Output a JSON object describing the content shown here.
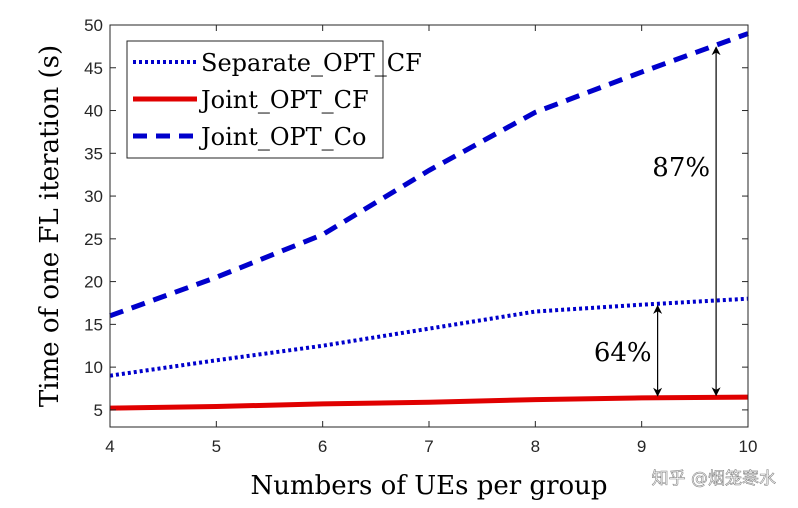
{
  "chart_data": {
    "type": "line",
    "xlabel": "Numbers of UEs per group",
    "ylabel": "Time of one FL iteration (s)",
    "xlim": [
      4,
      10
    ],
    "ylim": [
      3,
      50
    ],
    "xticks": [
      4,
      5,
      6,
      7,
      8,
      9,
      10
    ],
    "yticks": [
      5,
      10,
      15,
      20,
      25,
      30,
      35,
      40,
      45,
      50
    ],
    "grid": false,
    "legend_position": "top-left",
    "x": [
      4,
      5,
      6,
      7,
      8,
      9,
      10
    ],
    "series": [
      {
        "name": "Separate_OPT_CF",
        "color": "#0000cc",
        "style": "dotted",
        "values": [
          9.0,
          10.8,
          12.5,
          14.5,
          16.5,
          17.3,
          18.0
        ]
      },
      {
        "name": "Joint_OPT_CF",
        "color": "#e00000",
        "style": "solid",
        "values": [
          5.2,
          5.4,
          5.7,
          5.9,
          6.2,
          6.4,
          6.5
        ]
      },
      {
        "name": "Joint_OPT_Co",
        "color": "#0000cc",
        "style": "dashed",
        "values": [
          16.0,
          20.5,
          25.5,
          33.0,
          39.8,
          44.5,
          49.0
        ]
      }
    ],
    "annotations": [
      {
        "text": "64%",
        "x": 9.15,
        "from_series": "Separate_OPT_CF",
        "to_series": "Joint_OPT_CF"
      },
      {
        "text": "87%",
        "x": 9.7,
        "from_series": "Joint_OPT_Co",
        "to_series": "Joint_OPT_CF"
      }
    ]
  },
  "watermark": "知乎 @烟笼寒水"
}
